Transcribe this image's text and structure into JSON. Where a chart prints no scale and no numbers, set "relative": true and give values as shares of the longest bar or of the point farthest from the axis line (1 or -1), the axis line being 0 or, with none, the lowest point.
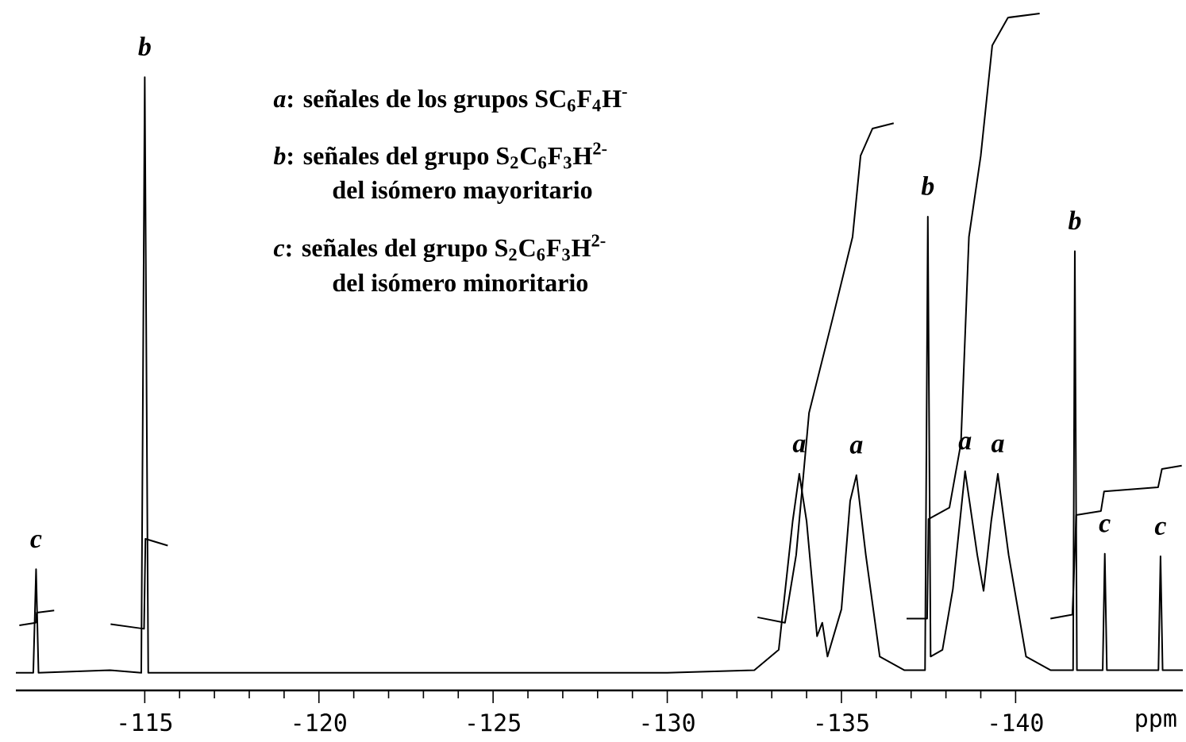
{
  "chart_data": {
    "type": "line",
    "relative": true,
    "xlabel": "ppm",
    "xlim": [
      -111.3,
      -144.8
    ],
    "xticks": [
      {
        "value": -115,
        "label": "-115"
      },
      {
        "value": -120,
        "label": "-120"
      },
      {
        "value": -125,
        "label": "-125"
      },
      {
        "value": -130,
        "label": "-130"
      },
      {
        "value": -135,
        "label": "-135"
      },
      {
        "value": -140,
        "label": "-140"
      }
    ],
    "marker": "none",
    "line_style": "solid",
    "series": [
      {
        "color": "#000000",
        "x": [
          -111.3,
          -111.8,
          -111.88,
          -111.95,
          -114.0,
          -114.9,
          -115.0,
          -115.1,
          -120,
          -125,
          -130,
          -132.5,
          -133.2,
          -133.6,
          -133.79,
          -134.0,
          -134.3,
          -134.45,
          -134.6,
          -135.0,
          -135.25,
          -135.43,
          -135.7,
          -136.1,
          -136.8,
          -137.4,
          -137.48,
          -137.56,
          -137.9,
          -138.2,
          -138.55,
          -138.9,
          -139.08,
          -139.3,
          -139.49,
          -139.8,
          -140.3,
          -141.0,
          -141.65,
          -141.7,
          -141.76,
          -142.5,
          -142.56,
          -142.62,
          -144.1,
          -144.16,
          -144.22,
          -144.8
        ],
        "values": [
          0.026,
          0.026,
          0.179,
          0.026,
          0.03,
          0.026,
          0.906,
          0.026,
          0.026,
          0.026,
          0.026,
          0.03,
          0.06,
          0.25,
          0.32,
          0.25,
          0.08,
          0.1,
          0.05,
          0.12,
          0.28,
          0.318,
          0.2,
          0.05,
          0.03,
          0.03,
          0.7,
          0.05,
          0.06,
          0.15,
          0.324,
          0.2,
          0.147,
          0.25,
          0.32,
          0.2,
          0.05,
          0.03,
          0.03,
          0.649,
          0.03,
          0.03,
          0.202,
          0.03,
          0.03,
          0.198,
          0.03,
          0.03
        ]
      },
      {
        "color": "#000000",
        "x": [
          -111.4,
          -111.87,
          -111.9,
          -112.4
        ],
        "values": [
          0.096,
          0.1,
          0.115,
          0.118
        ]
      },
      {
        "color": "#000000",
        "x": [
          -114.02,
          -114.98,
          -115.02,
          -115.66
        ],
        "values": [
          0.098,
          0.091,
          0.224,
          0.214
        ]
      },
      {
        "color": "#000000",
        "x": [
          -132.59,
          -133.38,
          -133.7,
          -134.07,
          -134.75,
          -135.32,
          -135.55,
          -135.89,
          -136.5
        ],
        "values": [
          0.108,
          0.1,
          0.2,
          0.41,
          0.55,
          0.67,
          0.79,
          0.83,
          0.838
        ]
      },
      {
        "color": "#000000",
        "x": [
          -136.87,
          -137.46,
          -137.5,
          -138.1,
          -138.43,
          -138.66,
          -139.0,
          -139.33,
          -139.78,
          -140.69
        ],
        "values": [
          0.106,
          0.106,
          0.253,
          0.27,
          0.365,
          0.67,
          0.79,
          0.953,
          0.994,
          1.0
        ]
      },
      {
        "color": "#000000",
        "x": [
          -141.0,
          -141.63,
          -141.74,
          -142.45,
          -142.54,
          -144.09,
          -144.2,
          -144.77
        ],
        "values": [
          0.106,
          0.112,
          0.259,
          0.265,
          0.294,
          0.3,
          0.327,
          0.332
        ]
      }
    ],
    "annotations": [
      "*a*: señales de los grupos SC$_{6}$F$_{4}$H$^{-}$",
      "*b*: señales del grupo S$_{2}$C$_{6}$F$_{3}$H$^{2-}$",
      "del isómero mayoritario",
      "*c*: señales del grupo S$_{2}$C$_{6}$F$_{3}$H$^{2-}$",
      "del isómero minoritario",
      {
        "text": "c",
        "x": -111.88,
        "y": 0.179
      },
      {
        "text": "b",
        "x": -115.0,
        "y": 0.906
      },
      {
        "text": "a",
        "x": -133.79,
        "y": 0.32
      },
      {
        "text": "a",
        "x": -135.43,
        "y": 0.318
      },
      {
        "text": "b",
        "x": -137.48,
        "y": 0.7
      },
      {
        "text": "a",
        "x": -138.55,
        "y": 0.324
      },
      {
        "text": "a",
        "x": -139.49,
        "y": 0.32
      },
      {
        "text": "b",
        "x": -141.7,
        "y": 0.649
      },
      {
        "text": "c",
        "x": -142.56,
        "y": 0.202
      },
      {
        "text": "c",
        "x": -144.16,
        "y": 0.198
      }
    ]
  }
}
